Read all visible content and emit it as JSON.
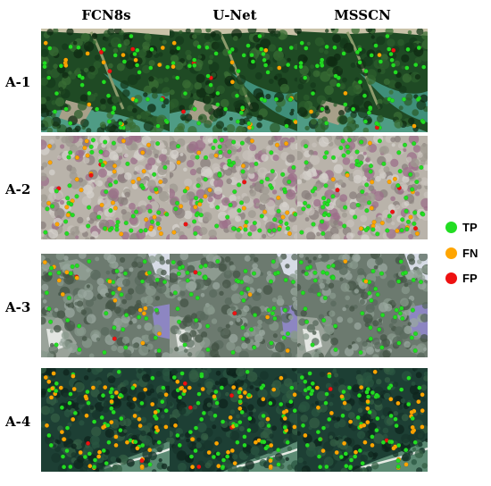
{
  "columns": [
    {
      "title": "FCN8s"
    },
    {
      "title": "U-Net"
    },
    {
      "title": "MSSCN"
    }
  ],
  "rows": [
    {
      "label": "A-1",
      "scene": "forest-river"
    },
    {
      "label": "A-2",
      "scene": "dense-canopy"
    },
    {
      "label": "A-3",
      "scene": "mixed-clearing"
    },
    {
      "label": "A-4",
      "scene": "dark-forest-road"
    }
  ],
  "legend": [
    {
      "label": "TP",
      "color": "#22dd22"
    },
    {
      "label": "FN",
      "color": "#ffa500"
    },
    {
      "label": "FP",
      "color": "#ee1111"
    }
  ]
}
